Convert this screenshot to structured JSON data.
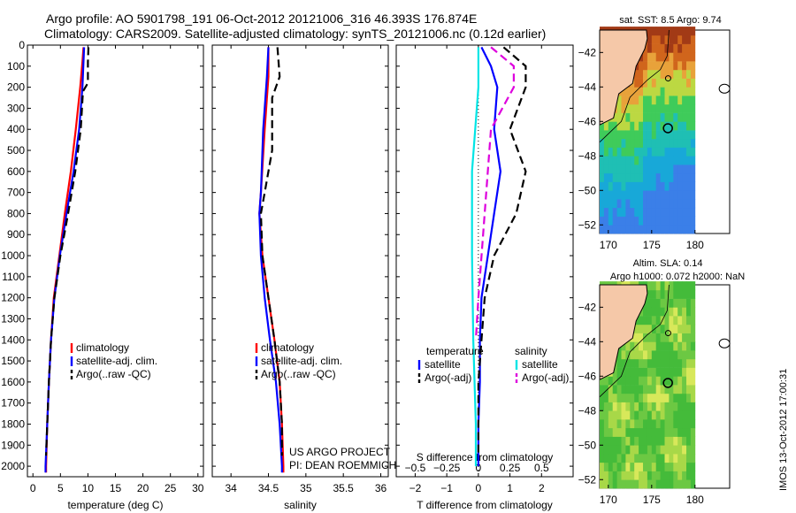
{
  "header": {
    "line1": "Argo profile: AO 5901798_191 06-Oct-2012 20121006_316 46.393S 176.874E",
    "line2": "Climatology: CARS2009. Satellite-adjusted climatology: synTS_20121006.nc (0.12d earlier)"
  },
  "colors": {
    "climatology": "#ff0000",
    "satellite": "#0000ff",
    "argo": "#000000",
    "salinity_satellite": "#00e5e5",
    "salinity_argo": "#dd00dd",
    "land": "#f5c8a8"
  },
  "stamp": "IMOS 13-Oct-2012 17:00:31",
  "credit": {
    "line1": "US ARGO PROJECT",
    "line2": "PI: DEAN ROEMMICH"
  },
  "chart_data": [
    {
      "type": "line",
      "xlabel": "temperature (deg C)",
      "ylabel": "",
      "xlim": [
        -1,
        31
      ],
      "ylim": [
        2050,
        0
      ],
      "xticks": [
        0,
        5,
        10,
        15,
        20,
        25,
        30
      ],
      "yticks": [
        0,
        100,
        200,
        300,
        400,
        500,
        600,
        700,
        800,
        900,
        1000,
        1100,
        1200,
        1300,
        1400,
        1500,
        1600,
        1700,
        1800,
        1900,
        2000
      ],
      "legend": [
        "climatology",
        "satellite-adj. clim.",
        "Argo(..raw -QC)"
      ],
      "series": [
        {
          "name": "climatology",
          "style": "solid",
          "color": "#ff0000",
          "points": [
            [
              9.2,
              10
            ],
            [
              9.0,
              80
            ],
            [
              8.6,
              200
            ],
            [
              7.8,
              400
            ],
            [
              6.9,
              600
            ],
            [
              5.8,
              800
            ],
            [
              4.8,
              1000
            ],
            [
              3.8,
              1200
            ],
            [
              3.3,
              1400
            ],
            [
              2.9,
              1600
            ],
            [
              2.6,
              1800
            ],
            [
              2.4,
              2000
            ],
            [
              2.4,
              2030
            ]
          ]
        },
        {
          "name": "satellite-adj. clim.",
          "style": "solid",
          "color": "#0000ff",
          "points": [
            [
              9.3,
              10
            ],
            [
              9.2,
              80
            ],
            [
              9.0,
              200
            ],
            [
              8.4,
              400
            ],
            [
              7.4,
              600
            ],
            [
              6.1,
              800
            ],
            [
              4.9,
              1000
            ],
            [
              3.9,
              1200
            ],
            [
              3.3,
              1400
            ],
            [
              2.9,
              1600
            ],
            [
              2.6,
              1800
            ],
            [
              2.3,
              2000
            ],
            [
              2.3,
              2030
            ]
          ]
        },
        {
          "name": "Argo(..raw -QC)",
          "style": "dash",
          "color": "#000000",
          "points": [
            [
              10.1,
              10
            ],
            [
              10.0,
              80
            ],
            [
              10.0,
              180
            ],
            [
              9.1,
              220
            ],
            [
              8.7,
              400
            ],
            [
              7.7,
              600
            ],
            [
              6.4,
              800
            ],
            [
              5.0,
              1000
            ],
            [
              3.9,
              1200
            ],
            [
              3.3,
              1400
            ],
            [
              2.9,
              1600
            ],
            [
              2.6,
              1800
            ],
            [
              2.4,
              1950
            ]
          ]
        }
      ]
    },
    {
      "type": "line",
      "xlabel": "salinity",
      "xlim": [
        33.75,
        36.1
      ],
      "ylim": [
        2050,
        0
      ],
      "xticks": [
        34,
        34.5,
        35,
        35.5,
        36
      ],
      "legend": [
        "climatology",
        "satellite-adj. clim.",
        "Argo(..raw -QC)"
      ],
      "series": [
        {
          "name": "climatology",
          "style": "solid",
          "color": "#ff0000",
          "points": [
            [
              34.5,
              10
            ],
            [
              34.5,
              150
            ],
            [
              34.45,
              400
            ],
            [
              34.4,
              700
            ],
            [
              34.38,
              800
            ],
            [
              34.42,
              1000
            ],
            [
              34.5,
              1200
            ],
            [
              34.58,
              1400
            ],
            [
              34.65,
              1600
            ],
            [
              34.68,
              1800
            ],
            [
              34.7,
              2000
            ],
            [
              34.7,
              2030
            ]
          ]
        },
        {
          "name": "satellite-adj. clim.",
          "style": "solid",
          "color": "#0000ff",
          "points": [
            [
              34.5,
              10
            ],
            [
              34.48,
              150
            ],
            [
              34.43,
              400
            ],
            [
              34.4,
              700
            ],
            [
              34.38,
              800
            ],
            [
              34.4,
              1000
            ],
            [
              34.45,
              1200
            ],
            [
              34.52,
              1400
            ],
            [
              34.6,
              1600
            ],
            [
              34.65,
              1800
            ],
            [
              34.68,
              2000
            ],
            [
              34.68,
              2030
            ]
          ]
        },
        {
          "name": "Argo(..raw -QC)",
          "style": "dash",
          "color": "#000000",
          "points": [
            [
              34.62,
              10
            ],
            [
              34.65,
              150
            ],
            [
              34.55,
              250
            ],
            [
              34.55,
              500
            ],
            [
              34.45,
              700
            ],
            [
              34.4,
              800
            ],
            [
              34.42,
              1000
            ],
            [
              34.5,
              1200
            ],
            [
              34.58,
              1400
            ],
            [
              34.65,
              1600
            ],
            [
              34.68,
              1800
            ],
            [
              34.68,
              1950
            ]
          ]
        }
      ]
    },
    {
      "type": "line",
      "xlabel": "T difference from climatology",
      "xlabel_top": "S difference from climatology",
      "xlim": [
        -2.6,
        3
      ],
      "ylim": [
        2050,
        0
      ],
      "xticks": [
        -2,
        -1,
        0,
        1,
        2
      ],
      "xticks_top": [
        -0.5,
        -0.25,
        0,
        0.25,
        0.5
      ],
      "legend_titles": [
        "temperature",
        "salinity"
      ],
      "legend": [
        "satellite",
        "Argo(-adj)",
        "satellite",
        "Argo(-adj)"
      ],
      "series": [
        {
          "name": "satellite",
          "group": "temperature",
          "style": "solid",
          "color": "#0000ff",
          "points": [
            [
              0.1,
              10
            ],
            [
              0.4,
              100
            ],
            [
              0.6,
              200
            ],
            [
              0.5,
              400
            ],
            [
              0.7,
              600
            ],
            [
              0.5,
              800
            ],
            [
              0.3,
              1000
            ],
            [
              0.1,
              1200
            ],
            [
              0.05,
              1400
            ],
            [
              0.05,
              1600
            ],
            [
              0.0,
              1800
            ],
            [
              0.0,
              2000
            ]
          ]
        },
        {
          "name": "Argo(-adj)",
          "group": "temperature",
          "style": "dash",
          "color": "#000000",
          "points": [
            [
              0.8,
              10
            ],
            [
              1.5,
              100
            ],
            [
              1.5,
              200
            ],
            [
              1.0,
              400
            ],
            [
              1.5,
              600
            ],
            [
              1.2,
              800
            ],
            [
              0.5,
              1000
            ],
            [
              0.2,
              1200
            ],
            [
              0.1,
              1400
            ],
            [
              0.0,
              1600
            ],
            [
              0.0,
              1800
            ],
            [
              0.0,
              1950
            ]
          ]
        },
        {
          "name": "satellite",
          "group": "salinity",
          "style": "solid",
          "color": "#00e5e5",
          "points": [
            [
              0.0,
              10
            ],
            [
              0.0,
              200
            ],
            [
              -0.05,
              600
            ],
            [
              -0.05,
              1000
            ],
            [
              -0.04,
              1400
            ],
            [
              -0.02,
              1800
            ],
            [
              -0.02,
              2000
            ]
          ]
        },
        {
          "name": "Argo(-adj)",
          "group": "salinity",
          "style": "dash",
          "color": "#dd00dd",
          "points": [
            [
              0.1,
              10
            ],
            [
              0.28,
              100
            ],
            [
              0.28,
              200
            ],
            [
              0.1,
              400
            ],
            [
              0.05,
              800
            ],
            [
              0.0,
              1200
            ],
            [
              -0.02,
              1400
            ]
          ]
        }
      ]
    },
    {
      "type": "heatmap",
      "title": "sat. SST: 8.5  Argo: 9.74",
      "xlim": [
        169,
        184
      ],
      "ylim": [
        -52.5,
        -40.7
      ],
      "xticks": [
        170,
        175,
        180
      ],
      "yticks": [
        -42,
        -44,
        -46,
        -48,
        -50,
        -52
      ],
      "argo_location": [
        176.874,
        -46.393
      ]
    },
    {
      "type": "heatmap",
      "title": "Altim. SLA: 0.14",
      "subtitle": "Argo h1000: 0.072 h2000: NaN",
      "xlim": [
        169,
        184
      ],
      "ylim": [
        -52.5,
        -40.7
      ],
      "xticks": [
        170,
        175,
        180
      ],
      "yticks": [
        -42,
        -44,
        -46,
        -48,
        -50,
        -52
      ],
      "argo_location": [
        176.874,
        -46.393
      ]
    }
  ]
}
